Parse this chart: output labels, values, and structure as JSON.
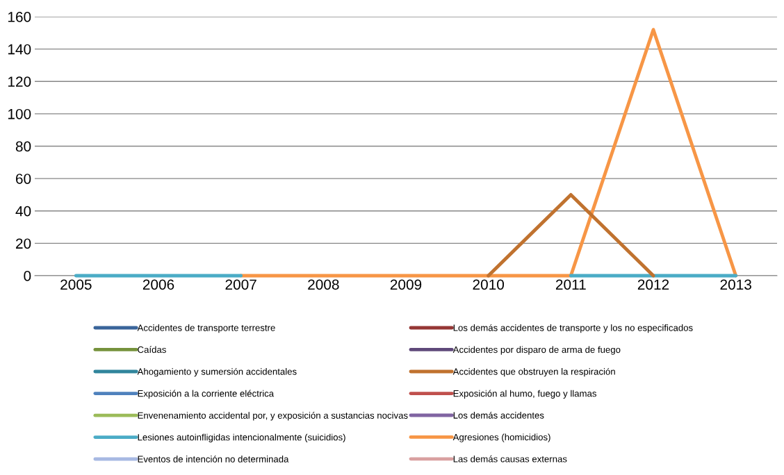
{
  "chart_data": {
    "type": "line",
    "categories": [
      "2005",
      "2006",
      "2007",
      "2008",
      "2009",
      "2010",
      "2011",
      "2012",
      "2013"
    ],
    "ylim": [
      0,
      160
    ],
    "yticks": [
      0,
      20,
      40,
      60,
      80,
      100,
      120,
      140,
      160
    ],
    "grid": "y",
    "legend": "bottom",
    "marker": "none",
    "line_style": "solid",
    "series": [
      {
        "name": "Accidentes de transporte terrestre",
        "color": "#3a659a",
        "values": [
          null,
          null,
          null,
          null,
          null,
          null,
          null,
          null,
          null
        ]
      },
      {
        "name": "Los demás accidentes de transporte y los no especificados",
        "color": "#953735",
        "values": [
          null,
          null,
          null,
          null,
          null,
          null,
          null,
          null,
          null
        ]
      },
      {
        "name": "Caídas",
        "color": "#76923c",
        "values": [
          null,
          null,
          null,
          null,
          null,
          null,
          null,
          null,
          null
        ]
      },
      {
        "name": "Accidentes por disparo de arma de fuego",
        "color": "#5f497a",
        "values": [
          null,
          null,
          null,
          null,
          null,
          null,
          null,
          null,
          null
        ]
      },
      {
        "name": "Ahogamiento y sumersión accidentales",
        "color": "#31859c",
        "values": [
          null,
          null,
          null,
          null,
          null,
          null,
          null,
          null,
          null
        ]
      },
      {
        "name": "Accidentes que obstruyen la respiración",
        "color": "#c0722f",
        "values": [
          null,
          null,
          null,
          null,
          null,
          0,
          50,
          0,
          null
        ]
      },
      {
        "name": "Exposición a la corriente eléctrica",
        "color": "#4f81bd",
        "values": [
          null,
          null,
          null,
          null,
          null,
          null,
          null,
          null,
          null
        ]
      },
      {
        "name": "Exposición al humo, fuego y llamas",
        "color": "#c0504d",
        "values": [
          null,
          null,
          null,
          null,
          null,
          null,
          null,
          null,
          null
        ]
      },
      {
        "name": "Envenenamiento accidental por, y exposición a sustancias nocivas",
        "color": "#9bbb59",
        "values": [
          null,
          null,
          null,
          null,
          null,
          null,
          null,
          null,
          null
        ]
      },
      {
        "name": "Los demás accidentes",
        "color": "#8064a2",
        "values": [
          null,
          null,
          null,
          null,
          null,
          null,
          null,
          null,
          null
        ]
      },
      {
        "name": "Lesiones autoinfligidas intencionalmente (suicidios)",
        "color": "#4bacc6",
        "values": [
          0,
          0,
          0,
          null,
          null,
          null,
          0,
          0,
          0
        ]
      },
      {
        "name": "Agresiones (homicidios)",
        "color": "#f79646",
        "values": [
          null,
          null,
          0,
          0,
          0,
          0,
          0,
          152,
          0
        ]
      },
      {
        "name": "Eventos de intención no determinada",
        "color": "#a7b9e3",
        "values": [
          null,
          null,
          null,
          null,
          null,
          null,
          null,
          null,
          null
        ]
      },
      {
        "name": "Las demás causas externas",
        "color": "#d9a0a0",
        "values": [
          null,
          null,
          null,
          null,
          null,
          null,
          null,
          null,
          null
        ]
      }
    ]
  }
}
